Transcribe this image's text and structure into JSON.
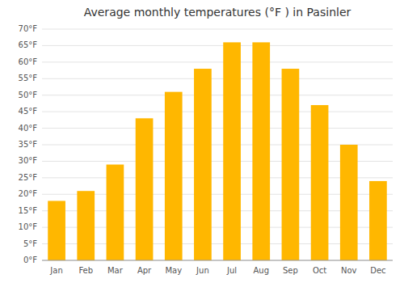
{
  "chart_data": {
    "type": "bar",
    "title": "Average monthly temperatures (°F ) in Pasinler",
    "categories": [
      "Jan",
      "Feb",
      "Mar",
      "Apr",
      "May",
      "Jun",
      "Jul",
      "Aug",
      "Sep",
      "Oct",
      "Nov",
      "Dec"
    ],
    "values": [
      18,
      21,
      29,
      43,
      51,
      58,
      66,
      66,
      58,
      47,
      35,
      24
    ],
    "color": "#FFB700",
    "ylim": [
      0,
      70
    ],
    "yticks": [
      {
        "value": 0,
        "label": "0°F"
      },
      {
        "value": 5,
        "label": "5°F"
      },
      {
        "value": 10,
        "label": "10°F"
      },
      {
        "value": 15,
        "label": "15°F"
      },
      {
        "value": 20,
        "label": "20°F"
      },
      {
        "value": 25,
        "label": "25°F"
      },
      {
        "value": 30,
        "label": "30°F"
      },
      {
        "value": 35,
        "label": "35°F"
      },
      {
        "value": 40,
        "label": "40°F"
      },
      {
        "value": 45,
        "label": "45°F"
      },
      {
        "value": 50,
        "label": "50°F"
      },
      {
        "value": 55,
        "label": "55°F"
      },
      {
        "value": 60,
        "label": "60°F"
      },
      {
        "value": 65,
        "label": "65°F"
      },
      {
        "value": 70,
        "label": "70°F"
      }
    ],
    "grid": true
  }
}
